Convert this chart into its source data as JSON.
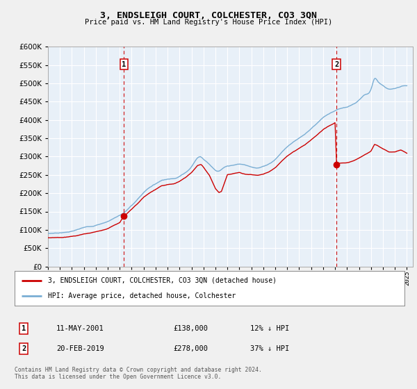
{
  "title": "3, ENDSLEIGH COURT, COLCHESTER, CO3 3QN",
  "subtitle": "Price paid vs. HM Land Registry's House Price Index (HPI)",
  "fig_bg_color": "#f0f0f0",
  "plot_bg_color": "#e8f0f8",
  "ylabel": "",
  "xlabel": "",
  "ylim": [
    0,
    600000
  ],
  "yticks": [
    0,
    50000,
    100000,
    150000,
    200000,
    250000,
    300000,
    350000,
    400000,
    450000,
    500000,
    550000,
    600000
  ],
  "ytick_labels": [
    "£0",
    "£50K",
    "£100K",
    "£150K",
    "£200K",
    "£250K",
    "£300K",
    "£350K",
    "£400K",
    "£450K",
    "£500K",
    "£550K",
    "£600K"
  ],
  "sale1_date": 2001.36,
  "sale1_price": 138000,
  "sale1_label": "1",
  "sale2_date": 2019.12,
  "sale2_price": 278000,
  "sale2_label": "2",
  "hpi_line_color": "#7aaed4",
  "price_line_color": "#cc0000",
  "marker_color": "#cc0000",
  "dashed_line_color": "#cc0000",
  "legend_label_price": "3, ENDSLEIGH COURT, COLCHESTER, CO3 3QN (detached house)",
  "legend_label_hpi": "HPI: Average price, detached house, Colchester",
  "footer_text": "Contains HM Land Registry data © Crown copyright and database right 2024.\nThis data is licensed under the Open Government Licence v3.0.",
  "xmin": 1995,
  "xmax": 2025.5,
  "hpi_data": [
    [
      1995.0,
      90000
    ],
    [
      1995.5,
      91000
    ],
    [
      1996.0,
      92500
    ],
    [
      1996.5,
      94000
    ],
    [
      1997.0,
      97000
    ],
    [
      1997.5,
      101000
    ],
    [
      1998.0,
      106000
    ],
    [
      1998.5,
      109000
    ],
    [
      1999.0,
      113000
    ],
    [
      1999.5,
      118000
    ],
    [
      2000.0,
      124000
    ],
    [
      2000.5,
      133000
    ],
    [
      2001.0,
      141000
    ],
    [
      2001.5,
      152000
    ],
    [
      2002.0,
      168000
    ],
    [
      2002.5,
      185000
    ],
    [
      2003.0,
      203000
    ],
    [
      2003.5,
      218000
    ],
    [
      2004.0,
      228000
    ],
    [
      2004.5,
      238000
    ],
    [
      2005.0,
      242000
    ],
    [
      2005.5,
      244000
    ],
    [
      2006.0,
      251000
    ],
    [
      2006.5,
      262000
    ],
    [
      2007.0,
      278000
    ],
    [
      2007.5,
      302000
    ],
    [
      2007.8,
      305000
    ],
    [
      2008.0,
      300000
    ],
    [
      2008.5,
      286000
    ],
    [
      2009.0,
      271000
    ],
    [
      2009.3,
      268000
    ],
    [
      2009.5,
      272000
    ],
    [
      2010.0,
      280000
    ],
    [
      2010.5,
      282000
    ],
    [
      2011.0,
      285000
    ],
    [
      2011.5,
      282000
    ],
    [
      2012.0,
      278000
    ],
    [
      2012.5,
      276000
    ],
    [
      2013.0,
      280000
    ],
    [
      2013.5,
      288000
    ],
    [
      2014.0,
      300000
    ],
    [
      2014.5,
      318000
    ],
    [
      2015.0,
      335000
    ],
    [
      2015.5,
      348000
    ],
    [
      2016.0,
      360000
    ],
    [
      2016.5,
      370000
    ],
    [
      2017.0,
      385000
    ],
    [
      2017.5,
      400000
    ],
    [
      2018.0,
      415000
    ],
    [
      2018.5,
      425000
    ],
    [
      2019.0,
      432000
    ],
    [
      2019.5,
      438000
    ],
    [
      2020.0,
      440000
    ],
    [
      2020.5,
      448000
    ],
    [
      2021.0,
      458000
    ],
    [
      2021.5,
      475000
    ],
    [
      2022.0,
      490000
    ],
    [
      2022.3,
      520000
    ],
    [
      2022.5,
      515000
    ],
    [
      2023.0,
      500000
    ],
    [
      2023.5,
      490000
    ],
    [
      2024.0,
      492000
    ],
    [
      2024.5,
      498000
    ],
    [
      2025.0,
      500000
    ]
  ],
  "red_data": [
    [
      1995.0,
      78000
    ],
    [
      1995.5,
      79000
    ],
    [
      1996.0,
      80000
    ],
    [
      1996.5,
      81500
    ],
    [
      1997.0,
      83000
    ],
    [
      1997.5,
      86000
    ],
    [
      1998.0,
      90000
    ],
    [
      1998.5,
      92500
    ],
    [
      1999.0,
      96000
    ],
    [
      1999.5,
      100000
    ],
    [
      2000.0,
      105000
    ],
    [
      2000.5,
      113000
    ],
    [
      2001.0,
      120000
    ],
    [
      2001.36,
      138000
    ],
    [
      2001.5,
      140000
    ],
    [
      2002.0,
      155000
    ],
    [
      2002.5,
      170000
    ],
    [
      2003.0,
      188000
    ],
    [
      2003.5,
      200000
    ],
    [
      2004.0,
      210000
    ],
    [
      2004.5,
      220000
    ],
    [
      2005.0,
      224000
    ],
    [
      2005.5,
      225000
    ],
    [
      2006.0,
      232000
    ],
    [
      2006.5,
      242000
    ],
    [
      2007.0,
      256000
    ],
    [
      2007.5,
      275000
    ],
    [
      2007.8,
      278000
    ],
    [
      2008.0,
      271000
    ],
    [
      2008.5,
      248000
    ],
    [
      2009.0,
      213000
    ],
    [
      2009.3,
      202000
    ],
    [
      2009.5,
      205000
    ],
    [
      2010.0,
      250000
    ],
    [
      2010.5,
      252000
    ],
    [
      2011.0,
      255000
    ],
    [
      2011.5,
      250000
    ],
    [
      2012.0,
      248000
    ],
    [
      2012.5,
      247000
    ],
    [
      2013.0,
      250000
    ],
    [
      2013.5,
      257000
    ],
    [
      2014.0,
      268000
    ],
    [
      2014.5,
      285000
    ],
    [
      2015.0,
      300000
    ],
    [
      2015.5,
      312000
    ],
    [
      2016.0,
      322000
    ],
    [
      2016.5,
      332000
    ],
    [
      2017.0,
      345000
    ],
    [
      2017.5,
      358000
    ],
    [
      2018.0,
      372000
    ],
    [
      2018.5,
      382000
    ],
    [
      2019.0,
      390000
    ],
    [
      2019.12,
      278000
    ],
    [
      2019.5,
      280000
    ],
    [
      2020.0,
      281000
    ],
    [
      2020.5,
      286000
    ],
    [
      2021.0,
      293000
    ],
    [
      2021.5,
      303000
    ],
    [
      2022.0,
      313000
    ],
    [
      2022.3,
      332000
    ],
    [
      2022.5,
      330000
    ],
    [
      2023.0,
      320000
    ],
    [
      2023.5,
      312000
    ],
    [
      2024.0,
      313000
    ],
    [
      2024.5,
      318000
    ],
    [
      2025.0,
      310000
    ]
  ]
}
